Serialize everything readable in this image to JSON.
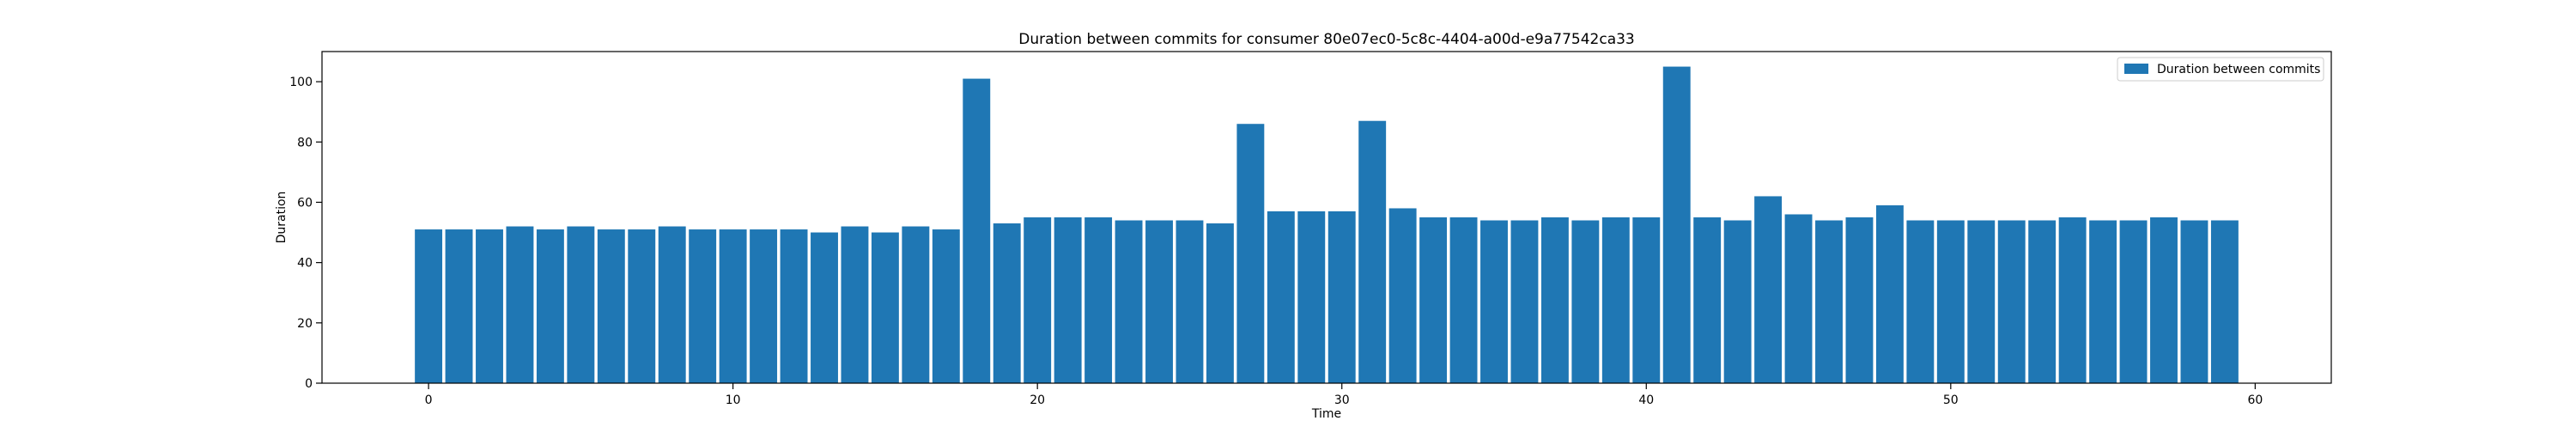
{
  "chart_data": {
    "type": "bar",
    "title": "Duration between commits for consumer 80e07ec0-5c8c-4404-a00d-e9a77542ca33",
    "xlabel": "Time",
    "ylabel": "Duration",
    "xlim": [
      -3.5,
      62.5
    ],
    "ylim": [
      0,
      110
    ],
    "xticks": [
      0,
      10,
      20,
      30,
      40,
      50,
      60
    ],
    "yticks": [
      0,
      20,
      40,
      60,
      80,
      100
    ],
    "grid": false,
    "legend_position": "top-right",
    "color": "#1f77b4",
    "series": [
      {
        "name": "Duration between commits",
        "x": [
          0,
          1,
          2,
          3,
          4,
          5,
          6,
          7,
          8,
          9,
          10,
          11,
          12,
          13,
          14,
          15,
          16,
          17,
          18,
          19,
          20,
          21,
          22,
          23,
          24,
          25,
          26,
          27,
          28,
          29,
          30,
          31,
          32,
          33,
          34,
          35,
          36,
          37,
          38,
          39,
          40,
          41,
          42,
          43,
          44,
          45,
          46,
          47,
          48,
          49,
          50,
          51,
          52,
          53,
          54,
          55,
          56,
          57,
          58,
          59
        ],
        "values": [
          51,
          51,
          51,
          52,
          51,
          52,
          51,
          51,
          52,
          51,
          51,
          51,
          51,
          50,
          52,
          50,
          52,
          51,
          101,
          53,
          55,
          55,
          55,
          54,
          54,
          54,
          53,
          86,
          57,
          57,
          57,
          87,
          58,
          55,
          55,
          54,
          54,
          55,
          54,
          55,
          55,
          105,
          55,
          54,
          62,
          56,
          54,
          55,
          59,
          54,
          54,
          54,
          54,
          54,
          55,
          54,
          54,
          55,
          54,
          54
        ]
      }
    ]
  }
}
